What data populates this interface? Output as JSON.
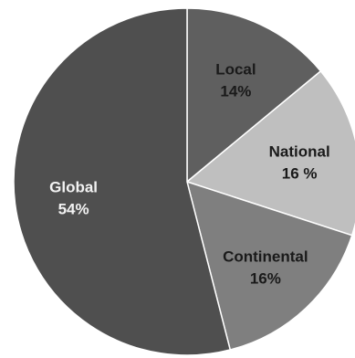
{
  "chart_data": {
    "type": "pie",
    "title": "",
    "start_angle_deg": 0,
    "direction": "clockwise",
    "slices": [
      {
        "name": "Local",
        "value": 14,
        "label_name": "Local",
        "label_value": "14%",
        "color": "#5f5f5f",
        "label_tone": "dark"
      },
      {
        "name": "National",
        "value": 16,
        "label_name": "National",
        "label_value": "16 %",
        "color": "#bfbfbf",
        "label_tone": "dark"
      },
      {
        "name": "Continental",
        "value": 16,
        "label_name": "Continental",
        "label_value": "16%",
        "color": "#7f7f7f",
        "label_tone": "dark"
      },
      {
        "name": "Global",
        "value": 54,
        "label_name": "Global",
        "label_value": "54%",
        "color": "#4f4f4f",
        "label_tone": "light"
      }
    ]
  }
}
